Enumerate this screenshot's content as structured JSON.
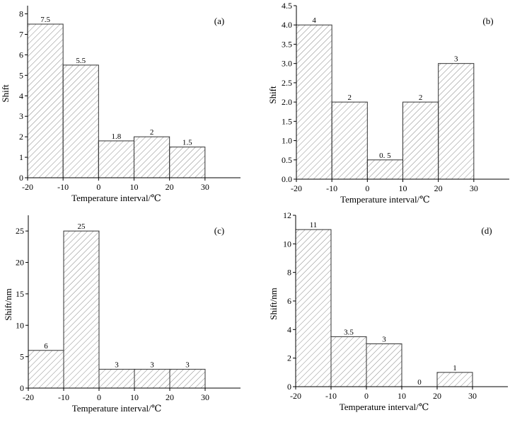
{
  "chart_data": [
    {
      "type": "bar",
      "panel_label": "(a)",
      "bins": [
        [
          -20,
          -10
        ],
        [
          -10,
          0
        ],
        [
          0,
          10
        ],
        [
          10,
          20
        ],
        [
          20,
          30
        ]
      ],
      "values": [
        7.5,
        5.5,
        1.8,
        2,
        1.5
      ],
      "value_labels": [
        "7.5",
        "5.5",
        "1.8",
        "2",
        "1.5"
      ],
      "xlabel": "Temperature interval/℃",
      "ylabel": "Shift",
      "xlim": [
        -20,
        40
      ],
      "ylim": [
        0,
        8.4
      ],
      "xticks": [
        -20,
        -10,
        0,
        10,
        20,
        30
      ],
      "yticks": [
        0,
        1,
        2,
        3,
        4,
        5,
        6,
        7,
        8
      ],
      "ytick_labels": [
        "0",
        "1",
        "2",
        "3",
        "4",
        "5",
        "6",
        "7",
        "8"
      ],
      "bar_fill": "hatched",
      "grid": false
    },
    {
      "type": "bar",
      "panel_label": "(b)",
      "bins": [
        [
          -20,
          -10
        ],
        [
          -10,
          0
        ],
        [
          0,
          10
        ],
        [
          10,
          20
        ],
        [
          20,
          30
        ]
      ],
      "values": [
        4,
        2,
        0.5,
        2,
        3
      ],
      "value_labels": [
        "4",
        "2",
        "0. 5",
        "2",
        "3"
      ],
      "xlabel": "Temperature interval/℃",
      "ylabel": "Shift",
      "xlim": [
        -20,
        40
      ],
      "ylim": [
        0,
        4.5
      ],
      "xticks": [
        -20,
        -10,
        0,
        10,
        20,
        30
      ],
      "yticks": [
        0,
        0.5,
        1,
        1.5,
        2,
        2.5,
        3,
        3.5,
        4,
        4.5
      ],
      "ytick_labels": [
        "0.0",
        "0.5",
        "1.0",
        "1.5",
        "2.0",
        "2.5",
        "3.0",
        "3.5",
        "4.0",
        "4.5"
      ],
      "bar_fill": "hatched",
      "grid": false
    },
    {
      "type": "bar",
      "panel_label": "(c)",
      "bins": [
        [
          -20,
          -10
        ],
        [
          -10,
          0
        ],
        [
          0,
          10
        ],
        [
          10,
          20
        ],
        [
          20,
          30
        ]
      ],
      "values": [
        6,
        25,
        3,
        3,
        3
      ],
      "value_labels": [
        "6",
        "25",
        "3",
        "3",
        "3"
      ],
      "xlabel": "Temperature interval/℃",
      "ylabel": "Shift/nm",
      "xlim": [
        -20,
        40
      ],
      "ylim": [
        0,
        27.5
      ],
      "xticks": [
        -20,
        -10,
        0,
        10,
        20,
        30
      ],
      "yticks": [
        0,
        5,
        10,
        15,
        20,
        25
      ],
      "ytick_labels": [
        "0",
        "5",
        "10",
        "15",
        "20",
        "25"
      ],
      "bar_fill": "hatched",
      "grid": false
    },
    {
      "type": "bar",
      "panel_label": "(d)",
      "bins": [
        [
          -20,
          -10
        ],
        [
          -10,
          0
        ],
        [
          0,
          10
        ],
        [
          10,
          20
        ],
        [
          20,
          30
        ]
      ],
      "values": [
        11,
        3.5,
        3,
        0,
        1
      ],
      "value_labels": [
        "11",
        "3.5",
        "3",
        "0",
        "1"
      ],
      "xlabel": "Temperature interval/℃",
      "ylabel": "Shift/nm",
      "xlim": [
        -20,
        40
      ],
      "ylim": [
        0,
        12
      ],
      "xticks": [
        -20,
        -10,
        0,
        10,
        20,
        30
      ],
      "yticks": [
        0,
        2,
        4,
        6,
        8,
        10,
        12
      ],
      "ytick_labels": [
        "0",
        "2",
        "4",
        "6",
        "8",
        "10",
        "12"
      ],
      "bar_fill": "hatched",
      "grid": false
    }
  ]
}
